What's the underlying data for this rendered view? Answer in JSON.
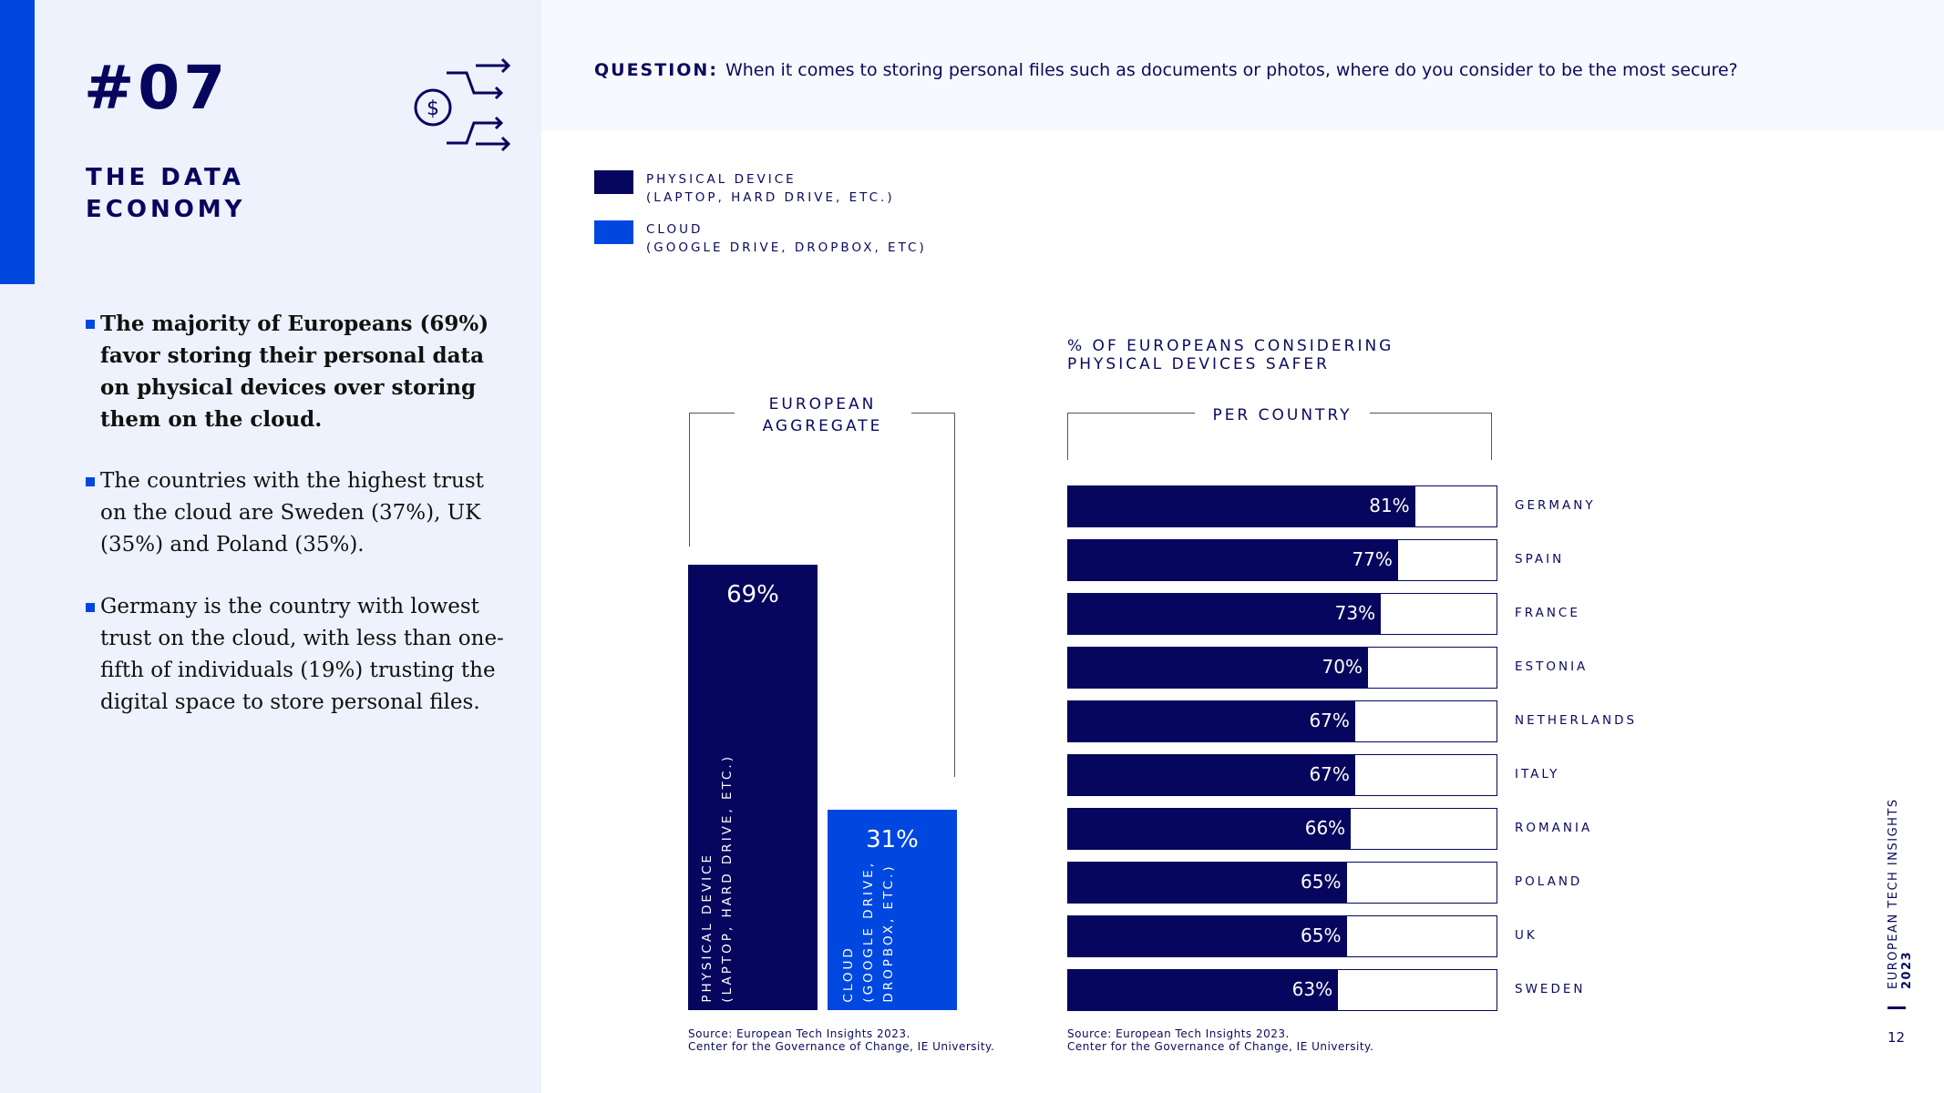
{
  "sidebar": {
    "number": "#07",
    "title_line1": "THE DATA",
    "title_line2": "ECONOMY",
    "bullets": [
      "The majority of Europeans (69%) favor storing their personal data on physical devices over storing them on the cloud.",
      "The countries with the highest trust on the cloud are Sweden (37%), UK (35%) and Poland (35%).",
      "Germany is the country with lowest trust on the cloud, with less than one-fifth of individuals (19%) trusting the digital space to store personal files."
    ]
  },
  "question": {
    "label": "QUESTION:",
    "text": "When it comes to storing personal files such as documents or photos, where do you consider to be the most secure?"
  },
  "legend": [
    {
      "line1": "PHYSICAL DEVICE",
      "line2": "(LAPTOP, HARD DRIVE, ETC.)",
      "color": "#06065e"
    },
    {
      "line1": "CLOUD",
      "line2": "(GOOGLE DRIVE, DROPBOX, ETC)",
      "color": "#0047e0"
    }
  ],
  "chart_data": [
    {
      "type": "bar",
      "title_line1": "EUROPEAN",
      "title_line2": "AGGREGATE",
      "categories": [
        "PHYSICAL DEVICE (LAPTOP, HARD DRIVE, ETC.)",
        "CLOUD (GOOGLE DRIVE, DROPBOX, ETC.)"
      ],
      "bars": [
        {
          "l1": "PHYSICAL DEVICE",
          "l2": "(LAPTOP, HARD DRIVE, ETC.)",
          "l3": "",
          "value": 69,
          "label": "69%",
          "color": "#06065e"
        },
        {
          "l1": "CLOUD",
          "l2": "(GOOGLE DRIVE,",
          "l3": "DROPBOX, ETC.)",
          "value": 31,
          "label": "31%",
          "color": "#0047e0"
        }
      ],
      "source1": "Source: European Tech Insights 2023.",
      "source2": "Center for the Governance of Change, IE University."
    },
    {
      "type": "bar",
      "title_line1": "% OF EUROPEANS CONSIDERING",
      "title_line2": "PHYSICAL DEVICES SAFER",
      "subtitle": "PER COUNTRY",
      "xlim": [
        0,
        100
      ],
      "rows": [
        {
          "country": "GERMANY",
          "value": 81,
          "label": "81%"
        },
        {
          "country": "SPAIN",
          "value": 77,
          "label": "77%"
        },
        {
          "country": "FRANCE",
          "value": 73,
          "label": "73%"
        },
        {
          "country": "ESTONIA",
          "value": 70,
          "label": "70%"
        },
        {
          "country": "NETHERLANDS",
          "value": 67,
          "label": "67%"
        },
        {
          "country": "ITALY",
          "value": 67,
          "label": "67%"
        },
        {
          "country": "ROMANIA",
          "value": 66,
          "label": "66%"
        },
        {
          "country": "POLAND",
          "value": 65,
          "label": "65%"
        },
        {
          "country": "UK",
          "value": 65,
          "label": "65%"
        },
        {
          "country": "SWEDEN",
          "value": 63,
          "label": "63%"
        }
      ],
      "source1": "Source: European Tech Insights 2023.",
      "source2": "Center for the Governance of Change, IE University."
    }
  ],
  "footer": {
    "report": "EUROPEAN TECH INSIGHTS ",
    "year": "2023",
    "page": "12"
  }
}
